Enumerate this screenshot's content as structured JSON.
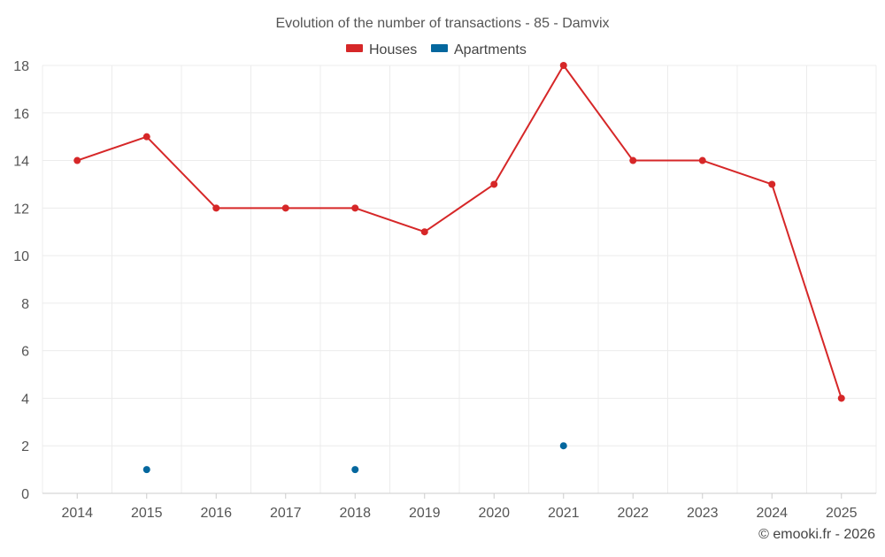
{
  "chart_data": {
    "type": "line",
    "title": "Evolution of the number of transactions - 85 - Damvix",
    "xlabel": "",
    "ylabel": "",
    "categories": [
      "2014",
      "2015",
      "2016",
      "2017",
      "2018",
      "2019",
      "2020",
      "2021",
      "2022",
      "2023",
      "2024",
      "2025"
    ],
    "ylim": [
      0,
      18
    ],
    "yticks": [
      "0",
      "2",
      "4",
      "6",
      "8",
      "10",
      "12",
      "14",
      "16",
      "18"
    ],
    "grid": true,
    "legend_position": "top-center",
    "series": [
      {
        "name": "Houses",
        "color": "#d62728",
        "values": [
          14,
          15,
          12,
          12,
          12,
          11,
          13,
          18,
          14,
          14,
          13,
          4
        ]
      },
      {
        "name": "Apartments",
        "color": "#04679e",
        "values": [
          null,
          1,
          null,
          null,
          1,
          null,
          null,
          2,
          null,
          null,
          null,
          null
        ]
      }
    ]
  },
  "credit": "© emooki.fr - 2026"
}
